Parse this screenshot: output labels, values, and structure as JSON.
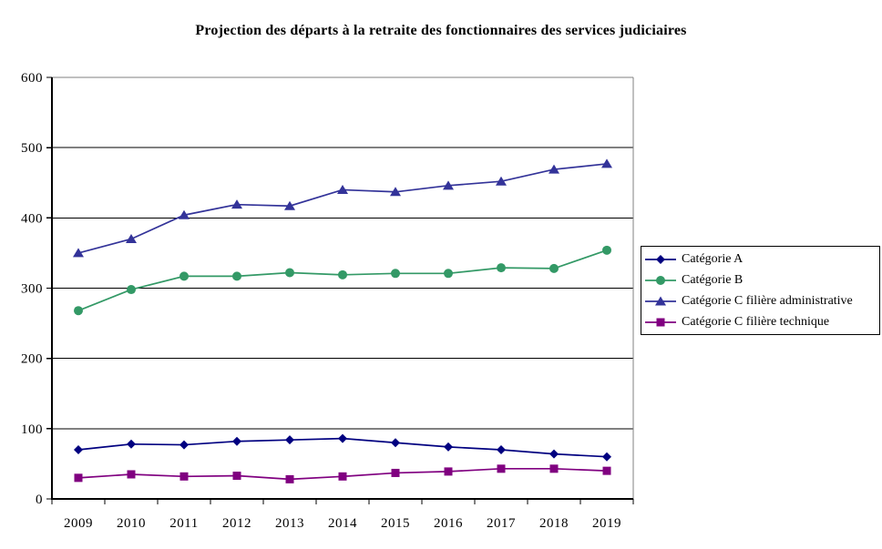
{
  "chart_data": {
    "type": "line",
    "title": "Projection des départs à la retraite des fonctionnaires des services judiciaires",
    "categories": [
      "2009",
      "2010",
      "2011",
      "2012",
      "2013",
      "2014",
      "2015",
      "2016",
      "2017",
      "2018",
      "2019"
    ],
    "y_ticks": [
      0,
      100,
      200,
      300,
      400,
      500,
      600
    ],
    "ylim": [
      0,
      600
    ],
    "xlabel": "",
    "ylabel": "",
    "grid": true,
    "legend_position": "right",
    "series": [
      {
        "name": "Catégorie A",
        "marker": "diamond",
        "color": "#000080",
        "values": [
          70,
          78,
          77,
          82,
          84,
          86,
          80,
          74,
          70,
          64,
          60
        ]
      },
      {
        "name": "Catégorie B",
        "marker": "circle",
        "color": "#339966",
        "values": [
          268,
          298,
          317,
          317,
          322,
          319,
          321,
          321,
          329,
          328,
          354
        ]
      },
      {
        "name": "Catégorie C filière administrative",
        "marker": "triangle",
        "color": "#333399",
        "values": [
          350,
          370,
          404,
          419,
          417,
          440,
          437,
          446,
          452,
          469,
          477
        ]
      },
      {
        "name": "Catégorie C filière technique",
        "marker": "square",
        "color": "#800080",
        "values": [
          30,
          35,
          32,
          33,
          28,
          32,
          37,
          39,
          43,
          43,
          40
        ]
      }
    ]
  },
  "colors": {
    "gridline": "#000000",
    "axis": "#000000",
    "plot_border": "#808080",
    "background": "#ffffff",
    "text": "#000000"
  }
}
